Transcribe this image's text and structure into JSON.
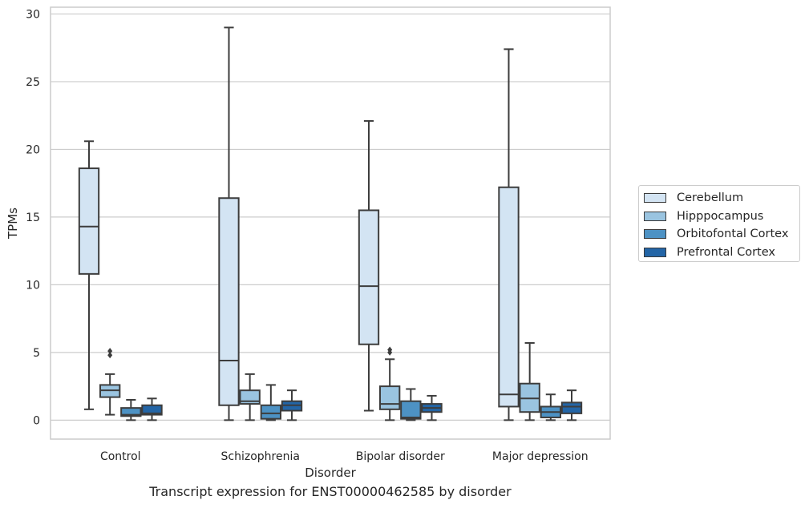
{
  "caption": "Transcript expression for ENST00000462585 by disorder",
  "chart_data": {
    "type": "boxplot",
    "xlabel": "Disorder",
    "ylabel": "TPMs",
    "ylim": [
      -1.4,
      30.5
    ],
    "yticks": [
      0,
      5,
      10,
      15,
      20,
      25,
      30
    ],
    "grid": "horizontal",
    "legend_position": "right",
    "categories": [
      "Control",
      "Schizophrenia",
      "Bipolar disorder",
      "Major depression"
    ],
    "series": [
      {
        "name": "Cerebellum",
        "color": "#d3e4f3",
        "boxes": [
          {
            "whislo": 0.8,
            "q1": 10.8,
            "med": 14.3,
            "q3": 18.6,
            "whishi": 20.6,
            "fliers": []
          },
          {
            "whislo": 0.0,
            "q1": 1.1,
            "med": 4.4,
            "q3": 16.4,
            "whishi": 29.0,
            "fliers": []
          },
          {
            "whislo": 0.7,
            "q1": 5.6,
            "med": 9.9,
            "q3": 15.5,
            "whishi": 22.1,
            "fliers": []
          },
          {
            "whislo": 0.0,
            "q1": 1.0,
            "med": 1.9,
            "q3": 17.2,
            "whishi": 27.4,
            "fliers": []
          }
        ]
      },
      {
        "name": "Hipppocampus",
        "color": "#9ac4e0",
        "boxes": [
          {
            "whislo": 0.4,
            "q1": 1.7,
            "med": 2.2,
            "q3": 2.6,
            "whishi": 3.4,
            "fliers": [
              4.8,
              5.1
            ]
          },
          {
            "whislo": 0.0,
            "q1": 1.2,
            "med": 1.4,
            "q3": 2.2,
            "whishi": 3.4,
            "fliers": []
          },
          {
            "whislo": 0.0,
            "q1": 0.8,
            "med": 1.2,
            "q3": 2.5,
            "whishi": 4.5,
            "fliers": [
              5.0,
              5.2
            ]
          },
          {
            "whislo": 0.0,
            "q1": 0.6,
            "med": 1.6,
            "q3": 2.7,
            "whishi": 5.7,
            "fliers": []
          }
        ]
      },
      {
        "name": "Orbitofontal Cortex",
        "color": "#4d92c4",
        "boxes": [
          {
            "whislo": 0.0,
            "q1": 0.3,
            "med": 0.4,
            "q3": 0.9,
            "whishi": 1.5,
            "fliers": []
          },
          {
            "whislo": 0.0,
            "q1": 0.1,
            "med": 0.5,
            "q3": 1.1,
            "whishi": 2.6,
            "fliers": []
          },
          {
            "whislo": 0.0,
            "q1": 0.1,
            "med": 0.2,
            "q3": 1.4,
            "whishi": 2.3,
            "fliers": []
          },
          {
            "whislo": 0.0,
            "q1": 0.2,
            "med": 0.6,
            "q3": 1.0,
            "whishi": 1.9,
            "fliers": []
          }
        ]
      },
      {
        "name": "Prefrontal Cortex",
        "color": "#2365a6",
        "boxes": [
          {
            "whislo": 0.0,
            "q1": 0.4,
            "med": 0.5,
            "q3": 1.1,
            "whishi": 1.6,
            "fliers": []
          },
          {
            "whislo": 0.0,
            "q1": 0.7,
            "med": 1.1,
            "q3": 1.4,
            "whishi": 2.2,
            "fliers": []
          },
          {
            "whislo": 0.0,
            "q1": 0.6,
            "med": 0.9,
            "q3": 1.2,
            "whishi": 1.8,
            "fliers": []
          },
          {
            "whislo": 0.0,
            "q1": 0.5,
            "med": 1.0,
            "q3": 1.3,
            "whishi": 2.2,
            "fliers": []
          }
        ]
      }
    ]
  }
}
